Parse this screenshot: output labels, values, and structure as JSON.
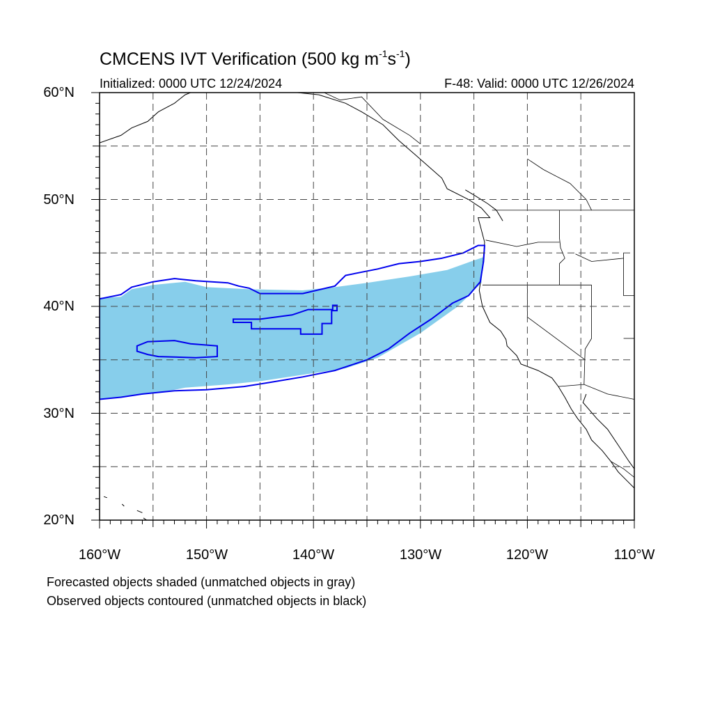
{
  "title": {
    "main": "CMCENS IVT Verification (500 kg m",
    "exp1": "-1",
    "s": "s",
    "exp2": "-1",
    "close": ")"
  },
  "initialized": "Initialized: 0000 UTC 12/24/2024",
  "valid": "F-48: Valid: 0000 UTC 12/26/2024",
  "map": {
    "lon_range": [
      -160,
      -110
    ],
    "lat_range": [
      20,
      60
    ],
    "lat_labels": [
      "60°N",
      "50°N",
      "40°N",
      "30°N",
      "20°N"
    ],
    "lon_labels": [
      "160°W",
      "150°W",
      "140°W",
      "130°W",
      "120°W",
      "110°W"
    ],
    "gridline_style": "dashed",
    "forecast_color": "#87ceeb",
    "observed_color": "#0000ee",
    "coast_color": "#000000",
    "forecast_object_lonlat": [
      [
        -160,
        40.8
      ],
      [
        -158,
        40.9
      ],
      [
        -157,
        41.6
      ],
      [
        -155,
        42.0
      ],
      [
        -152,
        42.3
      ],
      [
        -150,
        41.8
      ],
      [
        -146,
        41.6
      ],
      [
        -141,
        41.5
      ],
      [
        -138,
        41.8
      ],
      [
        -135,
        42.2
      ],
      [
        -131,
        42.8
      ],
      [
        -127.5,
        43.4
      ],
      [
        -125,
        44.3
      ],
      [
        -124.1,
        44.6
      ],
      [
        -124.3,
        42.2
      ],
      [
        -126.5,
        40.0
      ],
      [
        -130,
        37.5
      ],
      [
        -134,
        35.2
      ],
      [
        -137,
        34.2
      ],
      [
        -141,
        33.6
      ],
      [
        -145,
        33.0
      ],
      [
        -148,
        32.7
      ],
      [
        -152,
        32.4
      ],
      [
        -154,
        32.0
      ],
      [
        -157,
        31.6
      ],
      [
        -160,
        31.3
      ]
    ],
    "observed_object_lonlat": [
      [
        -160,
        40.7
      ],
      [
        -158,
        41.1
      ],
      [
        -157,
        41.8
      ],
      [
        -155,
        42.3
      ],
      [
        -153,
        42.6
      ],
      [
        -151,
        42.4
      ],
      [
        -148,
        42.2
      ],
      [
        -147,
        41.9
      ],
      [
        -146,
        41.7
      ],
      [
        -145,
        41.2
      ],
      [
        -141,
        41.2
      ],
      [
        -138,
        41.9
      ],
      [
        -137,
        42.9
      ],
      [
        -134,
        43.5
      ],
      [
        -132,
        44.0
      ],
      [
        -130,
        44.2
      ],
      [
        -128,
        44.5
      ],
      [
        -126,
        45.0
      ],
      [
        -124.6,
        45.7
      ],
      [
        -124.0,
        45.7
      ],
      [
        -124.1,
        44.2
      ],
      [
        -124.4,
        42.3
      ],
      [
        -125.5,
        41.0
      ],
      [
        -127,
        40.3
      ],
      [
        -129,
        38.8
      ],
      [
        -131,
        37.5
      ],
      [
        -133,
        36.0
      ],
      [
        -135,
        35.0
      ],
      [
        -136.5,
        34.5
      ],
      [
        -138,
        34.0
      ],
      [
        -141,
        33.4
      ],
      [
        -144,
        32.9
      ],
      [
        -146.5,
        32.5
      ],
      [
        -150,
        32.2
      ],
      [
        -153,
        32.1
      ],
      [
        -156,
        31.8
      ],
      [
        -158,
        31.5
      ],
      [
        -160,
        31.3
      ]
    ],
    "observed_inner_1_lonlat": [
      [
        -147.5,
        38.8
      ],
      [
        -145,
        38.8
      ],
      [
        -142,
        39.2
      ],
      [
        -140.5,
        39.7
      ],
      [
        -138.2,
        39.7
      ],
      [
        -138.2,
        40.1
      ],
      [
        -137.8,
        40.1
      ],
      [
        -137.8,
        39.6
      ],
      [
        -138.3,
        39.6
      ],
      [
        -138.3,
        38.4
      ],
      [
        -139.2,
        38.4
      ],
      [
        -139.2,
        37.4
      ],
      [
        -141.2,
        37.4
      ],
      [
        -141.2,
        37.9
      ],
      [
        -145.8,
        37.9
      ],
      [
        -145.8,
        38.5
      ],
      [
        -147.5,
        38.5
      ]
    ],
    "observed_inner_2_lonlat": [
      [
        -156.5,
        36.3
      ],
      [
        -155.5,
        36.7
      ],
      [
        -153,
        36.8
      ],
      [
        -151.5,
        36.5
      ],
      [
        -149,
        36.3
      ],
      [
        -149,
        35.3
      ],
      [
        -151,
        35.2
      ],
      [
        -154.5,
        35.3
      ],
      [
        -155.5,
        35.5
      ],
      [
        -156.5,
        35.8
      ]
    ],
    "coastlines_lonlat": [
      [
        [
          -124.2,
          40.0
        ],
        [
          -124.5,
          41.5
        ],
        [
          -124.2,
          43.5
        ],
        [
          -124.0,
          46.0
        ],
        [
          -124.6,
          48.3
        ],
        [
          -123.5,
          48.3
        ],
        [
          -124.3,
          49.2
        ],
        [
          -125.5,
          50.0
        ],
        [
          -127.5,
          51.0
        ],
        [
          -128,
          52.0
        ],
        [
          -130.5,
          54.2
        ],
        [
          -132,
          55.5
        ],
        [
          -133.5,
          57.0
        ],
        [
          -135.5,
          58.2
        ],
        [
          -137,
          59.0
        ],
        [
          -139.5,
          59.8
        ],
        [
          -141.5,
          60.0
        ]
      ],
      [
        [
          -124.2,
          40.0
        ],
        [
          -123.5,
          38.5
        ],
        [
          -122.5,
          37.7
        ],
        [
          -122.0,
          36.9
        ],
        [
          -121.9,
          36.3
        ],
        [
          -121.0,
          35.4
        ],
        [
          -120.6,
          34.6
        ],
        [
          -119.0,
          34.0
        ],
        [
          -117.7,
          33.3
        ],
        [
          -117.1,
          32.5
        ],
        [
          -116.5,
          31.5
        ],
        [
          -115.9,
          30.4
        ],
        [
          -115.3,
          29.5
        ],
        [
          -114.5,
          28.5
        ],
        [
          -114.0,
          27.5
        ],
        [
          -113.0,
          26.5
        ],
        [
          -112.2,
          25.5
        ],
        [
          -111.5,
          24.5
        ],
        [
          -110.5,
          23.5
        ],
        [
          -110.0,
          23.0
        ]
      ],
      [
        [
          -114.5,
          31.8
        ],
        [
          -114.8,
          31.0
        ],
        [
          -113.5,
          29.5
        ],
        [
          -112.5,
          28.5
        ],
        [
          -111.5,
          27.0
        ],
        [
          -110.5,
          25.5
        ],
        [
          -110.0,
          24.8
        ]
      ],
      [
        [
          -160,
          55.3
        ],
        [
          -158,
          56.0
        ],
        [
          -157,
          56.7
        ],
        [
          -155.5,
          57.3
        ],
        [
          -154.5,
          58.2
        ],
        [
          -153,
          59.0
        ],
        [
          -152,
          59.8
        ],
        [
          -151.5,
          60.0
        ]
      ],
      [
        [
          -122.3,
          48.0
        ],
        [
          -122.9,
          49.0
        ],
        [
          -123.7,
          49.6
        ],
        [
          -124.8,
          50.3
        ],
        [
          -125.8,
          50.9
        ]
      ],
      [
        [
          -159.6,
          22.2
        ],
        [
          -159.3,
          22.1
        ]
      ],
      [
        [
          -157.9,
          21.5
        ],
        [
          -157.7,
          21.3
        ]
      ],
      [
        [
          -156.5,
          20.9
        ],
        [
          -156.0,
          20.7
        ]
      ],
      [
        [
          -155.9,
          20.2
        ],
        [
          -155.0,
          19.6
        ]
      ]
    ],
    "borders_lonlat": [
      [
        [
          -123.3,
          49.0
        ],
        [
          -110,
          49.0
        ]
      ],
      [
        [
          -124.2,
          42.0
        ],
        [
          -114,
          42.0
        ]
      ],
      [
        [
          -120.0,
          42.0
        ],
        [
          -120.0,
          39.0
        ],
        [
          -114.6,
          35.0
        ]
      ],
      [
        [
          -117.1,
          32.5
        ],
        [
          -114.7,
          32.7
        ],
        [
          -112.5,
          31.8
        ],
        [
          -110,
          31.3
        ]
      ],
      [
        [
          -123.9,
          46.2
        ],
        [
          -121.0,
          45.6
        ],
        [
          -119.0,
          46.0
        ],
        [
          -117.0,
          46.0
        ]
      ],
      [
        [
          -117.0,
          49.0
        ],
        [
          -117.0,
          46.4
        ],
        [
          -116.9,
          45.5
        ],
        [
          -116.5,
          44.5
        ],
        [
          -117.0,
          44.0
        ],
        [
          -117.0,
          42.0
        ]
      ],
      [
        [
          -114.0,
          42.0
        ],
        [
          -114.0,
          37.0
        ],
        [
          -114.6,
          36.0
        ],
        [
          -114.7,
          32.7
        ]
      ],
      [
        [
          -139.0,
          60.0
        ],
        [
          -137.5,
          59.3
        ],
        [
          -135.5,
          59.6
        ],
        [
          -133.5,
          57.5
        ],
        [
          -131.0,
          56.0
        ],
        [
          -130.0,
          55.2
        ]
      ],
      [
        [
          -120.0,
          53.8
        ],
        [
          -118.5,
          52.8
        ],
        [
          -116.0,
          51.5
        ],
        [
          -114.5,
          50.0
        ],
        [
          -114.0,
          49.0
        ]
      ],
      [
        [
          -115.5,
          44.9
        ],
        [
          -114.0,
          44.2
        ],
        [
          -111.0,
          44.5
        ]
      ],
      [
        [
          -111.0,
          45.0
        ],
        [
          -111.0,
          41.0
        ],
        [
          -110,
          41.0
        ]
      ],
      [
        [
          -111.0,
          37.0
        ],
        [
          -110,
          37.0
        ]
      ],
      [
        [
          -110.0,
          24.0
        ],
        [
          -111.0,
          24.8
        ],
        [
          -112.2,
          25.5
        ]
      ]
    ]
  },
  "footnotes": [
    "Forecasted objects shaded (unmatched objects in gray)",
    "Observed objects contoured (unmatched objects in black)"
  ]
}
